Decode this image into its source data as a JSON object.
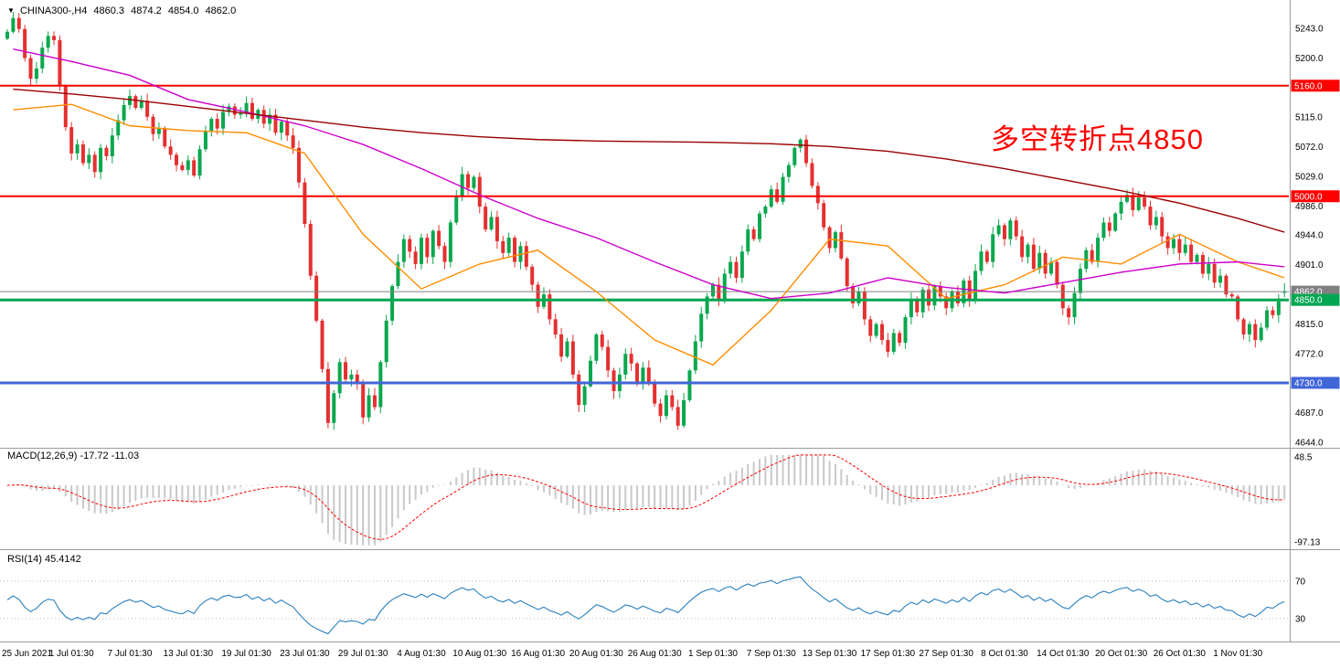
{
  "window": {
    "collapse_icon": "▼",
    "symbol": "CHINA300-,H4",
    "open": "4860.3",
    "high": "4874.2",
    "low": "4854.0",
    "close": "4862.0"
  },
  "annotation": {
    "text": "多空转折点4850",
    "color": "#ff0000"
  },
  "indicators": {
    "macd_label": "MACD(12,26,9) -17.72 -11.03",
    "rsi_label": "RSI(14) 45.4142"
  },
  "chart_data": {
    "type": "candlestick",
    "title": "CHINA300- H4",
    "symbol": "CHINA300-",
    "timeframe": "H4",
    "ylim": [
      4644.0,
      5243.0
    ],
    "price_ticks": [
      5243.0,
      5200.0,
      5115.0,
      5072.0,
      5029.0,
      4986.0,
      4944.0,
      4901.0,
      4815.0,
      4772.0,
      4687.0,
      4644.0
    ],
    "price_tags": [
      {
        "label": "5160.0",
        "value": 5160.0,
        "color": "#ff0000",
        "line_width": 2
      },
      {
        "label": "5000.0",
        "value": 5000.0,
        "color": "#ff0000",
        "line_width": 2
      },
      {
        "label": "4862.0",
        "value": 4862.0,
        "color": "#808080",
        "line_width": 1
      },
      {
        "label": "4850.0",
        "value": 4850.0,
        "color": "#00a651",
        "line_width": 3
      },
      {
        "label": "4730.0",
        "value": 4730.0,
        "color": "#4166d8",
        "line_width": 3
      }
    ],
    "time_labels": [
      "25 Jun 2021",
      "1 Jul 01:30",
      "7 Jul 01:30",
      "13 Jul 01:30",
      "19 Jul 01:30",
      "23 Jul 01:30",
      "29 Jul 01:30",
      "4 Aug 01:30",
      "10 Aug 01:30",
      "16 Aug 01:30",
      "20 Aug 01:30",
      "26 Aug 01:30",
      "1 Sep 01:30",
      "7 Sep 01:30",
      "13 Sep 01:30",
      "17 Sep 01:30",
      "27 Sep 01:30",
      "8 Oct 01:30",
      "14 Oct 01:30",
      "20 Oct 01:30",
      "26 Oct 01:30",
      "1 Nov 01:30"
    ],
    "closes": [
      5238,
      5258,
      5242,
      5200,
      5170,
      5185,
      5215,
      5232,
      5226,
      5160,
      5100,
      5062,
      5075,
      5048,
      5060,
      5035,
      5070,
      5058,
      5088,
      5110,
      5132,
      5145,
      5128,
      5138,
      5115,
      5090,
      5098,
      5072,
      5060,
      5045,
      5038,
      5052,
      5030,
      5068,
      5095,
      5112,
      5098,
      5122,
      5130,
      5118,
      5120,
      5135,
      5112,
      5125,
      5105,
      5118,
      5092,
      5108,
      5088,
      5070,
      5020,
      4960,
      4885,
      4820,
      4750,
      4672,
      4715,
      4760,
      4735,
      4742,
      4730,
      4680,
      4712,
      4695,
      4760,
      4820,
      4870,
      4905,
      4938,
      4920,
      4902,
      4940,
      4912,
      4950,
      4928,
      4905,
      4962,
      5000,
      5032,
      5012,
      5028,
      4985,
      4952,
      4970,
      4935,
      4918,
      4940,
      4905,
      4928,
      4898,
      4872,
      4840,
      4858,
      4822,
      4800,
      4768,
      4790,
      4742,
      4698,
      4725,
      4762,
      4800,
      4782,
      4748,
      4718,
      4742,
      4772,
      4758,
      4730,
      4752,
      4728,
      4700,
      4682,
      4712,
      4695,
      4668,
      4705,
      4748,
      4790,
      4830,
      4855,
      4872,
      4850,
      4888,
      4905,
      4882,
      4920,
      4952,
      4938,
      4975,
      4985,
      5010,
      4992,
      5028,
      5045,
      5070,
      5082,
      5048,
      5015,
      4990,
      4955,
      4925,
      4948,
      4910,
      4870,
      4845,
      4862,
      4822,
      4798,
      4815,
      4792,
      4775,
      4802,
      4788,
      4825,
      4850,
      4832,
      4865,
      4842,
      4870,
      4855,
      4838,
      4862,
      4845,
      4878,
      4850,
      4892,
      4920,
      4905,
      4945,
      4958,
      4938,
      4965,
      4942,
      4912,
      4930,
      4895,
      4918,
      4888,
      4905,
      4872,
      4838,
      4825,
      4860,
      4895,
      4922,
      4905,
      4940,
      4962,
      4950,
      4975,
      4992,
      5002,
      4980,
      4998,
      4985,
      4958,
      4970,
      4942,
      4925,
      4938,
      4918,
      4930,
      4905,
      4915,
      4888,
      4902,
      4875,
      4885,
      4858,
      4855,
      4822,
      4800,
      4815,
      4792,
      4810,
      4835,
      4828,
      4848,
      4862
    ],
    "current_bar": {
      "open": 4860.3,
      "high": 4874.2,
      "low": 4854.0,
      "close": 4862.0
    },
    "moving_averages": [
      {
        "name": "fast",
        "color": "#ff8c00",
        "anchors": [
          5125,
          5133,
          5102,
          5095,
          5092,
          5062,
          4945,
          4866,
          4902,
          4922,
          4862,
          4792,
          4756,
          4835,
          4938,
          4928,
          4852,
          4872,
          4912,
          4902,
          4945,
          4905,
          4882
        ]
      },
      {
        "name": "mid",
        "color": "#cc00cc",
        "anchors": [
          5213,
          5195,
          5175,
          5140,
          5122,
          5102,
          5075,
          5040,
          5002,
          4968,
          4940,
          4905,
          4872,
          4852,
          4860,
          4882,
          4868,
          4860,
          4875,
          4890,
          4902,
          4905,
          4898
        ]
      },
      {
        "name": "slow",
        "color": "#990000",
        "anchors": [
          5155,
          5148,
          5140,
          5130,
          5120,
          5110,
          5100,
          5092,
          5086,
          5082,
          5080,
          5079,
          5078,
          5076,
          5072,
          5065,
          5054,
          5040,
          5024,
          5008,
          4990,
          4968,
          4948
        ]
      }
    ],
    "macd": {
      "fast": 12,
      "slow": 26,
      "signal": 9,
      "current_macd": -17.72,
      "current_signal": -11.03,
      "axis_ticks": [
        48.5,
        -97.13
      ]
    },
    "rsi": {
      "period": 14,
      "current": 45.4142,
      "levels": [
        70,
        30
      ]
    }
  },
  "colors": {
    "up": "#0aa74e",
    "down": "#e43030",
    "macd_hist": "#c9c9c9",
    "macd_signal": "#ff0000",
    "rsi_line": "#2a7fbe",
    "separator": "#9b9b9b"
  }
}
